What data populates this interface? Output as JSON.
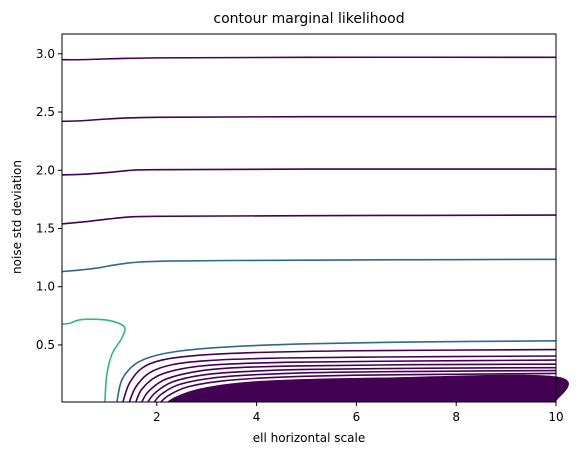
{
  "chart_data": {
    "type": "contour",
    "title": "contour marginal likelihood",
    "xlabel": "ell horizontal scale",
    "ylabel": "noise std deviation",
    "xlim": [
      0.1,
      10
    ],
    "ylim": [
      0.01,
      3.17
    ],
    "xticks": [
      2,
      4,
      6,
      8,
      10
    ],
    "yticks": [
      0.5,
      1.0,
      1.5,
      2.0,
      2.5,
      3.0
    ],
    "xtick_labels": [
      "2",
      "4",
      "6",
      "8",
      "10"
    ],
    "ytick_labels": [
      "0.5",
      "1.0",
      "1.5",
      "2.0",
      "2.5",
      "3.0"
    ],
    "grid": false,
    "colormap": "viridis",
    "colors": {
      "dark": "#440154",
      "mid": "#31688e",
      "green": "#35b779",
      "axis": "#000000"
    },
    "contours": [
      {
        "color": "dark",
        "points": [
          [
            0.1,
            2.95
          ],
          [
            0.5,
            2.95
          ],
          [
            2,
            2.965
          ],
          [
            5,
            2.97
          ],
          [
            10,
            2.97
          ]
        ]
      },
      {
        "color": "dark",
        "points": [
          [
            0.1,
            2.42
          ],
          [
            0.5,
            2.425
          ],
          [
            1,
            2.44
          ],
          [
            2,
            2.455
          ],
          [
            5,
            2.46
          ],
          [
            10,
            2.46
          ]
        ]
      },
      {
        "color": "dark",
        "points": [
          [
            0.1,
            1.96
          ],
          [
            0.5,
            1.965
          ],
          [
            1,
            1.98
          ],
          [
            1.5,
            2.0
          ],
          [
            2,
            2.005
          ],
          [
            5,
            2.01
          ],
          [
            10,
            2.01
          ]
        ]
      },
      {
        "color": "dark",
        "points": [
          [
            0.1,
            1.54
          ],
          [
            0.5,
            1.555
          ],
          [
            1,
            1.58
          ],
          [
            1.5,
            1.6
          ],
          [
            2.2,
            1.605
          ],
          [
            5,
            1.61
          ],
          [
            10,
            1.615
          ]
        ]
      },
      {
        "color": "mid",
        "points": [
          [
            0.1,
            1.13
          ],
          [
            0.5,
            1.145
          ],
          [
            0.8,
            1.16
          ],
          [
            1.2,
            1.19
          ],
          [
            1.6,
            1.21
          ],
          [
            2.2,
            1.22
          ],
          [
            3.5,
            1.225
          ],
          [
            6,
            1.23
          ],
          [
            10,
            1.235
          ]
        ]
      },
      {
        "color": "green",
        "points": [
          [
            0.1,
            0.68
          ],
          [
            0.25,
            0.685
          ],
          [
            0.45,
            0.715
          ],
          [
            0.8,
            0.72
          ],
          [
            1.1,
            0.705
          ],
          [
            1.35,
            0.655
          ],
          [
            1.3,
            0.56
          ],
          [
            1.1,
            0.42
          ],
          [
            1.0,
            0.25
          ],
          [
            0.97,
            0.1
          ],
          [
            0.96,
            0.01
          ]
        ]
      },
      {
        "color": "mid",
        "points": [
          [
            1.2,
            0.01
          ],
          [
            1.3,
            0.2
          ],
          [
            1.55,
            0.33
          ],
          [
            1.9,
            0.4
          ],
          [
            2.5,
            0.45
          ],
          [
            3.5,
            0.485
          ],
          [
            5,
            0.51
          ],
          [
            7,
            0.525
          ],
          [
            10,
            0.535
          ]
        ]
      },
      {
        "color": "dark",
        "points": [
          [
            1.32,
            0.01
          ],
          [
            1.45,
            0.17
          ],
          [
            1.7,
            0.3
          ],
          [
            2.1,
            0.37
          ],
          [
            2.8,
            0.41
          ],
          [
            4,
            0.435
          ],
          [
            6,
            0.45
          ],
          [
            10,
            0.46
          ]
        ]
      },
      {
        "color": "dark",
        "points": [
          [
            1.45,
            0.01
          ],
          [
            1.58,
            0.14
          ],
          [
            1.85,
            0.26
          ],
          [
            2.3,
            0.33
          ],
          [
            3.0,
            0.365
          ],
          [
            4.2,
            0.385
          ],
          [
            6,
            0.395
          ],
          [
            10,
            0.405
          ]
        ]
      },
      {
        "color": "dark",
        "points": [
          [
            1.58,
            0.01
          ],
          [
            1.7,
            0.12
          ],
          [
            2.0,
            0.23
          ],
          [
            2.5,
            0.295
          ],
          [
            3.2,
            0.33
          ],
          [
            4.5,
            0.35
          ],
          [
            6.5,
            0.36
          ],
          [
            10,
            0.37
          ]
        ]
      },
      {
        "color": "dark",
        "points": [
          [
            1.7,
            0.01
          ],
          [
            1.83,
            0.1
          ],
          [
            2.15,
            0.2
          ],
          [
            2.7,
            0.265
          ],
          [
            3.4,
            0.3
          ],
          [
            4.8,
            0.32
          ],
          [
            7,
            0.33
          ],
          [
            10,
            0.335
          ]
        ]
      },
      {
        "color": "dark",
        "points": [
          [
            1.82,
            0.01
          ],
          [
            1.97,
            0.09
          ],
          [
            2.3,
            0.18
          ],
          [
            2.9,
            0.24
          ],
          [
            3.7,
            0.27
          ],
          [
            5,
            0.29
          ],
          [
            7.5,
            0.3
          ],
          [
            10,
            0.305
          ]
        ]
      },
      {
        "color": "dark",
        "points": [
          [
            1.95,
            0.01
          ],
          [
            2.1,
            0.08
          ],
          [
            2.45,
            0.16
          ],
          [
            3.1,
            0.215
          ],
          [
            4,
            0.245
          ],
          [
            5.5,
            0.265
          ],
          [
            8,
            0.275
          ],
          [
            10,
            0.28
          ]
        ]
      },
      {
        "color": "dark",
        "points": [
          [
            2.08,
            0.01
          ],
          [
            2.25,
            0.07
          ],
          [
            2.62,
            0.14
          ],
          [
            3.3,
            0.19
          ],
          [
            4.3,
            0.22
          ],
          [
            6,
            0.24
          ],
          [
            8.5,
            0.25
          ],
          [
            10,
            0.255
          ]
        ]
      }
    ],
    "filled_region": {
      "color": "dark",
      "points": [
        [
          2.2,
          0.01
        ],
        [
          2.4,
          0.06
        ],
        [
          2.8,
          0.12
        ],
        [
          3.5,
          0.17
        ],
        [
          4.5,
          0.2
        ],
        [
          6.5,
          0.22
        ],
        [
          10,
          0.23
        ],
        [
          10,
          0.01
        ]
      ]
    }
  }
}
